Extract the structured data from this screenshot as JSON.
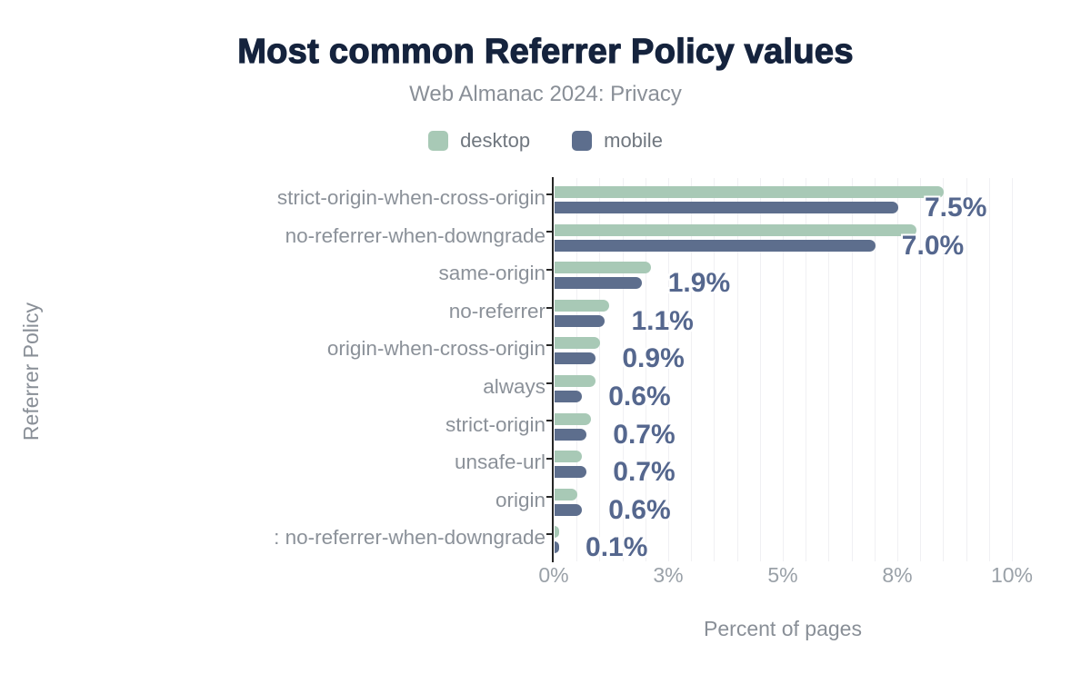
{
  "colors": {
    "title": "#15233d",
    "subtitle_gray": "#898f97",
    "category_gray": "#8b9199",
    "tick_gray": "#9aa1a8",
    "value_label": "#55678e",
    "desktop": "#a8c9b6",
    "mobile": "#5d6e8d",
    "axis_line": "#262626",
    "gridline": "#f0f0f3"
  },
  "chart_data": {
    "type": "bar",
    "orientation": "horizontal",
    "title": "Most common Referrer Policy values",
    "subtitle": "Web Almanac 2024: Privacy",
    "xlabel": "Percent of pages",
    "ylabel": "Referrer Policy",
    "xlim": [
      0,
      10
    ],
    "grid": true,
    "gridline_step_percent": 0.5,
    "legend_position": "top",
    "categories": [
      "strict-origin-when-cross-origin",
      "no-referrer-when-downgrade",
      "same-origin",
      "no-referrer",
      "origin-when-cross-origin",
      "always",
      "strict-origin",
      "unsafe-url",
      "origin",
      ": no-referrer-when-downgrade"
    ],
    "series": [
      {
        "name": "desktop",
        "color": "#a8c9b6",
        "values": [
          8.5,
          7.9,
          2.1,
          1.2,
          1.0,
          0.9,
          0.8,
          0.6,
          0.5,
          0.1
        ]
      },
      {
        "name": "mobile",
        "color": "#5d6e8d",
        "values": [
          7.5,
          7.0,
          1.9,
          1.1,
          0.9,
          0.6,
          0.7,
          0.7,
          0.6,
          0.1
        ]
      }
    ],
    "value_labels": [
      "7.5%",
      "7.0%",
      "1.9%",
      "1.1%",
      "0.9%",
      "0.6%",
      "0.7%",
      "0.7%",
      "0.6%",
      "0.1%"
    ],
    "value_label_series": "mobile",
    "x_ticks": [
      {
        "pct": 0,
        "label": "0%"
      },
      {
        "pct": 2.5,
        "label": "3%"
      },
      {
        "pct": 5,
        "label": "5%"
      },
      {
        "pct": 7.5,
        "label": "8%"
      },
      {
        "pct": 10,
        "label": "10%"
      }
    ]
  }
}
